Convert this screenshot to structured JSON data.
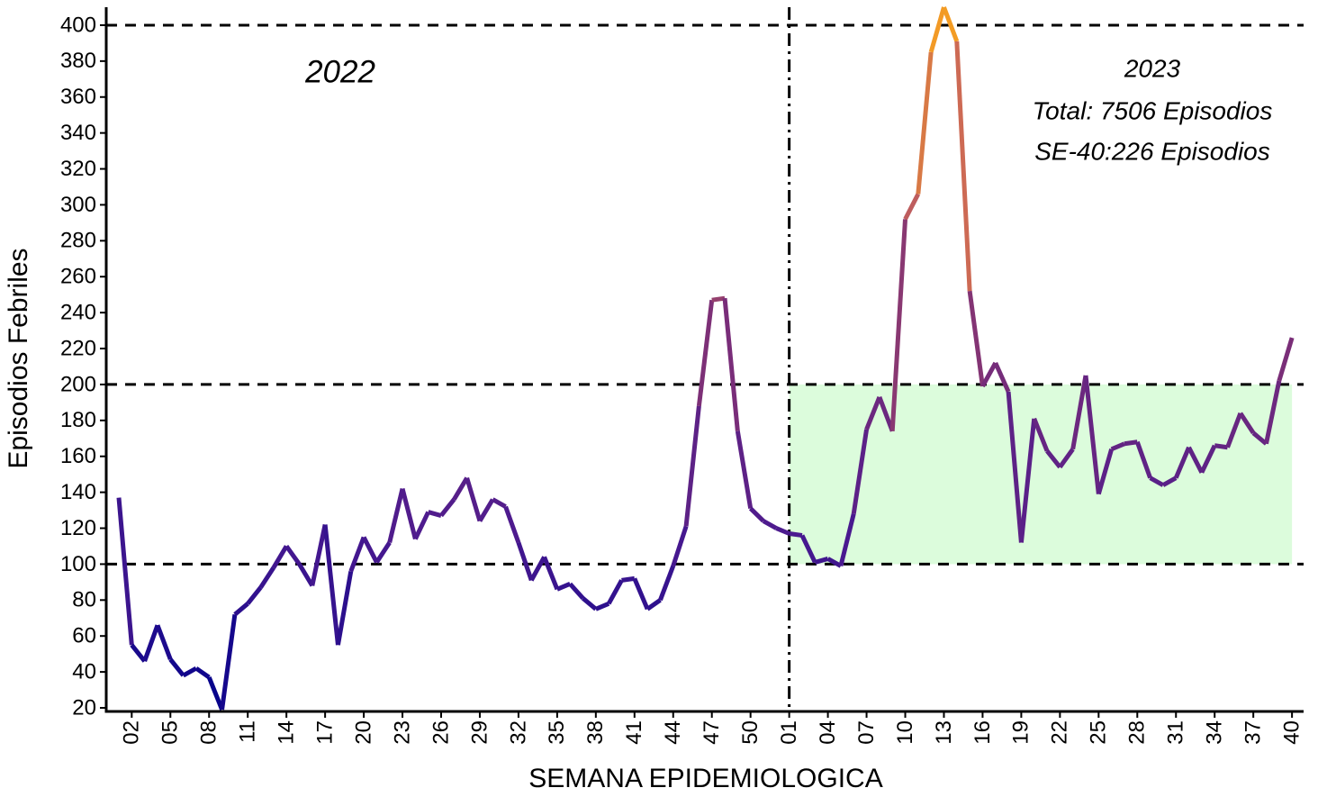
{
  "chart_data": {
    "type": "line",
    "x_label": "SEMANA EPIDEMIOLOGICA",
    "y_label": "Episodios Febriles",
    "annotations": [
      "2022",
      "2023",
      "Total: 7506 Episodios",
      "SE-40:226 Episodios"
    ],
    "categories": [
      null,
      "02",
      null,
      null,
      "05",
      null,
      null,
      "08",
      null,
      null,
      "11",
      null,
      null,
      "14",
      null,
      null,
      "17",
      null,
      null,
      "20",
      null,
      null,
      "23",
      null,
      null,
      "26",
      null,
      null,
      "29",
      null,
      null,
      "32",
      null,
      null,
      "35",
      null,
      null,
      "38",
      null,
      null,
      "41",
      null,
      null,
      "44",
      null,
      null,
      "47",
      null,
      null,
      "50",
      null,
      null,
      "01",
      null,
      null,
      "04",
      null,
      null,
      "07",
      null,
      null,
      "10",
      null,
      null,
      "13",
      null,
      null,
      "16",
      null,
      null,
      "19",
      null,
      null,
      "22",
      null,
      null,
      "25",
      null,
      null,
      "28",
      null,
      null,
      "31",
      null,
      null,
      "34",
      null,
      null,
      "37",
      null,
      null,
      "40"
    ],
    "values": [
      137,
      55,
      46,
      66,
      47,
      38,
      42,
      37,
      19,
      72,
      78,
      87,
      98,
      110,
      100,
      88,
      122,
      55,
      96,
      115,
      101,
      112,
      142,
      114,
      129,
      127,
      136,
      148,
      124,
      136,
      132,
      112,
      91,
      104,
      86,
      89,
      81,
      75,
      78,
      91,
      92,
      75,
      80,
      99,
      121,
      188,
      247,
      248,
      174,
      131,
      124,
      120,
      117,
      116,
      101,
      103,
      99,
      128,
      175,
      193,
      174,
      292,
      306,
      385,
      410,
      391,
      252,
      199,
      212,
      196,
      112,
      181,
      163,
      154,
      164,
      205,
      139,
      164,
      167,
      168,
      148,
      144,
      148,
      165,
      151,
      166,
      165,
      184,
      173,
      167,
      202,
      226
    ],
    "color_scale": [
      "#00008b",
      "#4b1a8f",
      "#7a2e78",
      "#c8645a",
      "#f8a21e"
    ],
    "ylim": [
      18,
      410
    ],
    "yticks": [
      20,
      40,
      60,
      80,
      100,
      120,
      140,
      160,
      180,
      200,
      220,
      240,
      260,
      280,
      300,
      320,
      340,
      360,
      380,
      400
    ],
    "hlines": [
      100,
      200,
      400
    ],
    "vline_at": "01",
    "band": {
      "y": [
        100,
        200
      ],
      "from": "01",
      "to": "40",
      "color": "#dcfcdc"
    }
  }
}
